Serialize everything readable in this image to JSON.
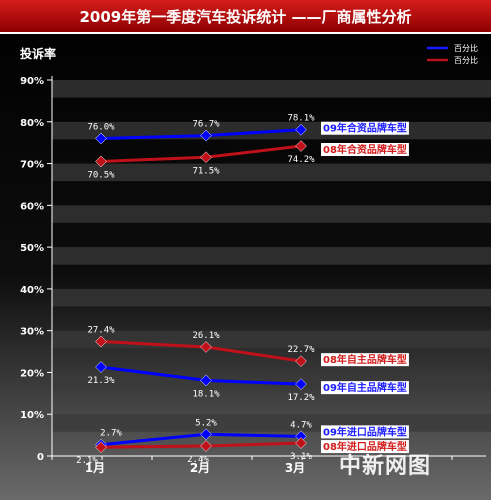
{
  "title": "2009年第一季度汽车投诉统计 ——厂商属性分析",
  "watermark": "中新网图",
  "chart_data": {
    "type": "line",
    "ylabel": "投诉率",
    "xlabel": "",
    "categories": [
      "1月",
      "2月",
      "3月"
    ],
    "ylim": [
      0,
      90
    ],
    "yticks": [
      "0",
      "10%",
      "20%",
      "30%",
      "40%",
      "50%",
      "60%",
      "70%",
      "80%",
      "90%"
    ],
    "legend": {
      "placement": "top-right",
      "entries": [
        {
          "label": "百分比",
          "color": "#1a1aff"
        },
        {
          "label": "百分比",
          "color": "#b5121b"
        }
      ]
    },
    "series": [
      {
        "name": "09年合资品牌车型",
        "color": "#0000ff",
        "label_color": "#1a1aff",
        "values": [
          76.0,
          76.7,
          78.1
        ],
        "labels": [
          "76.0%",
          "76.7%",
          "78.1%"
        ],
        "label_pos": "above"
      },
      {
        "name": "08年合资品牌车型",
        "color": "#c0101a",
        "label_color": "#d21a1a",
        "values": [
          70.5,
          71.5,
          74.2
        ],
        "labels": [
          "70.5%",
          "71.5%",
          "74.2%"
        ],
        "label_pos": "below"
      },
      {
        "name": "08年自主品牌车型",
        "color": "#c0101a",
        "label_color": "#d21a1a",
        "values": [
          27.4,
          26.1,
          22.7
        ],
        "labels": [
          "27.4%",
          "26.1%",
          "22.7%"
        ],
        "label_pos": "above"
      },
      {
        "name": "09年自主品牌车型",
        "color": "#0000ff",
        "label_color": "#1a1aff",
        "values": [
          21.3,
          18.1,
          17.2
        ],
        "labels": [
          "21.3%",
          "18.1%",
          "17.2%"
        ],
        "label_pos": "below"
      },
      {
        "name": "09年进口品牌车型",
        "color": "#0000ff",
        "label_color": "#1a1aff",
        "values": [
          2.7,
          5.2,
          4.7
        ],
        "labels": [
          "2.7%",
          "5.2%",
          "4.7%"
        ],
        "label_pos": "above"
      },
      {
        "name": "08年进口品牌车型",
        "color": "#c0101a",
        "label_color": "#d21a1a",
        "values": [
          2.1,
          2.4,
          3.1
        ],
        "labels": [
          "2.1%",
          "2.4%",
          "3.1%"
        ],
        "label_pos": "below"
      }
    ]
  }
}
